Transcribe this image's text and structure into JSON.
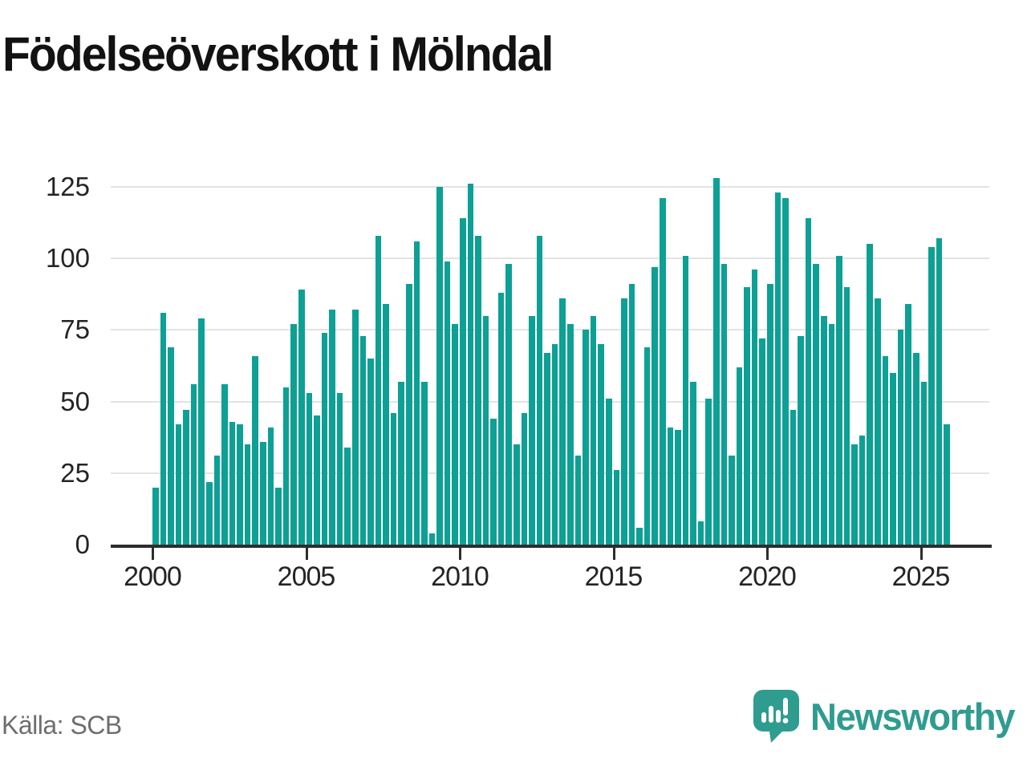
{
  "header": {
    "title": "Födelseöverskott i Mölndal"
  },
  "footer": {
    "source": "Källa: SCB",
    "brand": "Newsworthy"
  },
  "chart_data": {
    "type": "bar",
    "title": "Födelseöverskott i Mölndal",
    "xlabel": "",
    "ylabel": "",
    "bar_color": "#0da094",
    "grid": "horizontal",
    "legend": "none",
    "ylim": [
      0,
      130
    ],
    "y_ticks": [
      0,
      25,
      50,
      75,
      100,
      125
    ],
    "x_tick_labels": [
      "2000",
      "2005",
      "2010",
      "2015",
      "2020",
      "2025"
    ],
    "x_tick_bar_index": [
      0,
      20,
      40,
      60,
      80,
      100
    ],
    "categories": [
      "2000 Q1",
      "2000 Q2",
      "2000 Q3",
      "2000 Q4",
      "2001 Q1",
      "2001 Q2",
      "2001 Q3",
      "2001 Q4",
      "2002 Q1",
      "2002 Q2",
      "2002 Q3",
      "2002 Q4",
      "2003 Q1",
      "2003 Q2",
      "2003 Q3",
      "2003 Q4",
      "2004 Q1",
      "2004 Q2",
      "2004 Q3",
      "2004 Q4",
      "2005 Q1",
      "2005 Q2",
      "2005 Q3",
      "2005 Q4",
      "2006 Q1",
      "2006 Q2",
      "2006 Q3",
      "2006 Q4",
      "2007 Q1",
      "2007 Q2",
      "2007 Q3",
      "2007 Q4",
      "2008 Q1",
      "2008 Q2",
      "2008 Q3",
      "2008 Q4",
      "2009 Q1",
      "2009 Q2",
      "2009 Q3",
      "2009 Q4",
      "2010 Q1",
      "2010 Q2",
      "2010 Q3",
      "2010 Q4",
      "2011 Q1",
      "2011 Q2",
      "2011 Q3",
      "2011 Q4",
      "2012 Q1",
      "2012 Q2",
      "2012 Q3",
      "2012 Q4",
      "2013 Q1",
      "2013 Q2",
      "2013 Q3",
      "2013 Q4",
      "2014 Q1",
      "2014 Q2",
      "2014 Q3",
      "2014 Q4",
      "2015 Q1",
      "2015 Q2",
      "2015 Q3",
      "2015 Q4",
      "2016 Q1",
      "2016 Q2",
      "2016 Q3",
      "2016 Q4",
      "2017 Q1",
      "2017 Q2",
      "2017 Q3",
      "2017 Q4",
      "2018 Q1",
      "2018 Q2",
      "2018 Q3",
      "2018 Q4",
      "2019 Q1",
      "2019 Q2",
      "2019 Q3",
      "2019 Q4",
      "2020 Q1",
      "2020 Q2",
      "2020 Q3",
      "2020 Q4",
      "2021 Q1",
      "2021 Q2",
      "2021 Q3",
      "2021 Q4",
      "2022 Q1",
      "2022 Q2",
      "2022 Q3",
      "2022 Q4",
      "2023 Q1",
      "2023 Q2",
      "2023 Q3",
      "2023 Q4",
      "2024 Q1",
      "2024 Q2",
      "2024 Q3",
      "2024 Q4",
      "2025 Q1",
      "2025 Q2",
      "2025 Q3",
      "2025 Q4"
    ],
    "values": [
      20,
      81,
      69,
      42,
      47,
      56,
      79,
      22,
      31,
      56,
      43,
      42,
      35,
      66,
      36,
      41,
      20,
      55,
      77,
      89,
      53,
      45,
      74,
      82,
      53,
      34,
      82,
      73,
      65,
      108,
      84,
      46,
      57,
      91,
      106,
      57,
      4,
      125,
      99,
      77,
      114,
      126,
      108,
      80,
      44,
      88,
      98,
      35,
      46,
      80,
      108,
      67,
      70,
      86,
      77,
      31,
      75,
      80,
      70,
      51,
      26,
      86,
      91,
      6,
      69,
      97,
      121,
      41,
      40,
      101,
      57,
      8,
      51,
      128,
      98,
      31,
      62,
      90,
      96,
      72,
      91,
      123,
      121,
      47,
      73,
      114,
      98,
      80,
      77,
      101,
      90,
      35,
      38,
      105,
      86,
      66,
      60,
      75,
      84,
      67,
      57,
      104,
      107,
      42
    ]
  }
}
